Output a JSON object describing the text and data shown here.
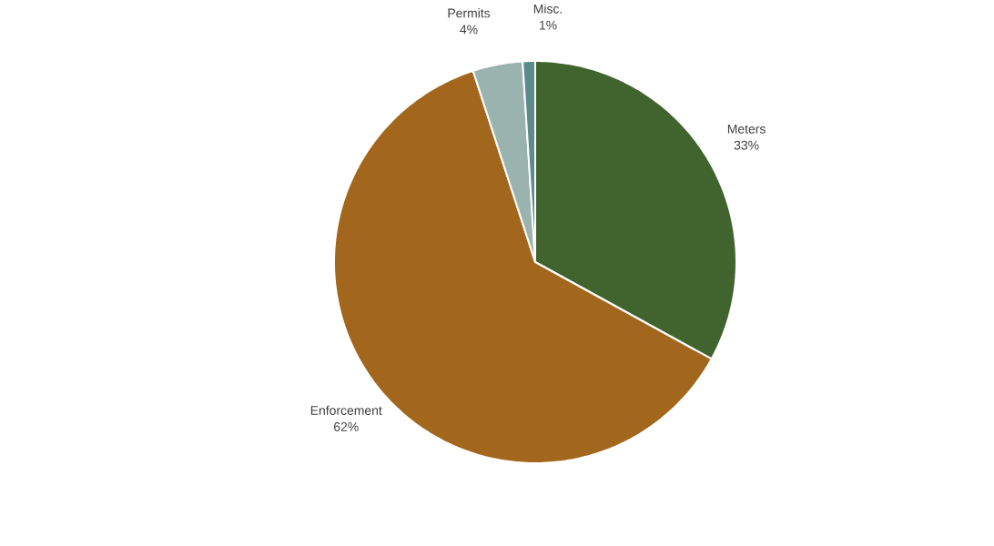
{
  "chart_data": {
    "type": "pie",
    "categories": [
      "Meters",
      "Enforcement",
      "Permits",
      "Misc."
    ],
    "values": [
      33,
      62,
      4,
      1
    ],
    "colors": [
      "#41632e",
      "#a2661c",
      "#9bb3af",
      "#5f8a8b"
    ],
    "value_labels": [
      "33%",
      "62%",
      "4%",
      "1%"
    ]
  }
}
